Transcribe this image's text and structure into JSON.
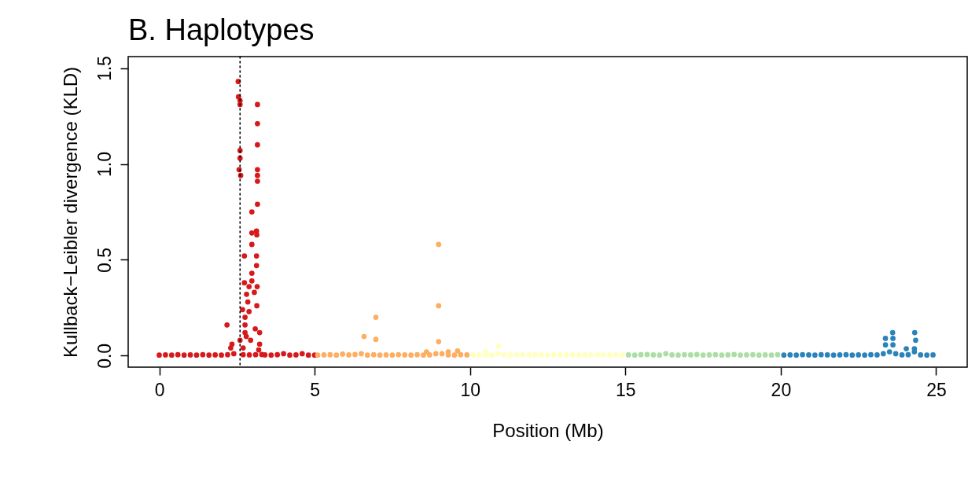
{
  "chart_data": {
    "type": "scatter",
    "title": "B. Haplotypes",
    "xlabel": "Position (Mb)",
    "ylabel": "Kullback−Leibler divergence (KLD)",
    "marker": "circle",
    "xlim": [
      -1,
      26
    ],
    "xticks": [
      0,
      5,
      10,
      15,
      20,
      25
    ],
    "ylim": [
      -0.06,
      1.56
    ],
    "yticks": [
      {
        "value": 0,
        "label": "0.0"
      },
      {
        "value": 0.5,
        "label": "0.5"
      },
      {
        "value": 1,
        "label": "1.0"
      },
      {
        "value": 1.5,
        "label": "1.5"
      }
    ],
    "ref_lines": [
      {
        "axis": "x",
        "value": 2.6,
        "line_style": "dotted",
        "color": "#000000"
      }
    ],
    "series": [
      {
        "color": "#d7191c",
        "x": [
          0,
          0.2,
          0.4,
          0.6,
          0.8,
          1,
          1.2,
          1.4,
          1.6,
          1.8,
          2,
          2.2,
          2.4,
          2.7,
          2.9,
          3.1,
          3.3,
          3.4,
          3.6,
          3.8,
          4,
          4.2,
          4.4,
          4.6,
          4.8,
          5,
          2.54,
          2.55,
          2.6,
          2.6,
          3.16,
          3.16,
          3.16,
          2.6,
          2.6,
          2.57,
          2.62,
          3.16,
          3.16,
          3.16,
          3.16,
          2.98,
          2.98,
          3.13,
          3.14,
          2.98,
          2.74,
          3.13,
          3.13,
          2.98,
          2.74,
          2.98,
          3.15,
          2.89,
          2.81,
          3.06,
          2.85,
          3.14,
          2.68,
          2.89,
          2.76,
          2.76,
          2.18,
          2.76,
          3.09,
          3.23,
          2.34,
          2.6,
          2.94,
          3.23,
          2.7,
          2.8,
          3.2,
          2.3
        ],
        "values": [
          0.003,
          0.004,
          0.003,
          0.005,
          0.003,
          0.004,
          0.003,
          0.005,
          0.003,
          0.004,
          0.003,
          0.005,
          0.01,
          0.005,
          0.004,
          0.005,
          0.006,
          0.004,
          0.003,
          0.005,
          0.01,
          0.003,
          0.004,
          0.01,
          0.003,
          0.003,
          1.43,
          1.35,
          1.33,
          1.31,
          1.31,
          1.21,
          1.1,
          1.07,
          1.03,
          0.97,
          0.94,
          0.97,
          0.94,
          0.91,
          0.79,
          0.75,
          0.64,
          0.65,
          0.63,
          0.58,
          0.52,
          0.52,
          0.47,
          0.43,
          0.38,
          0.39,
          0.36,
          0.36,
          0.32,
          0.33,
          0.28,
          0.26,
          0.24,
          0.23,
          0.2,
          0.16,
          0.16,
          0.12,
          0.14,
          0.12,
          0.06,
          0.08,
          0.08,
          0.06,
          0.04,
          0.1,
          0.03,
          0.04
        ]
      },
      {
        "color": "#fdae61",
        "x": [
          5.1,
          5.3,
          5.5,
          5.7,
          5.9,
          6.1,
          6.3,
          6.5,
          6.7,
          6.9,
          7.1,
          7.3,
          7.5,
          7.7,
          7.9,
          8.1,
          8.3,
          8.5,
          8.7,
          8.9,
          9.1,
          9.3,
          9.5,
          9.7,
          9.9,
          8.99,
          8.99,
          6.97,
          6.59,
          6.97,
          8.99,
          9.3,
          9.6,
          8.6
        ],
        "values": [
          0.003,
          0.004,
          0.005,
          0.003,
          0.008,
          0.004,
          0.006,
          0.01,
          0.003,
          0.005,
          0.003,
          0.004,
          0.003,
          0.005,
          0.004,
          0.003,
          0.005,
          0.003,
          0.004,
          0.01,
          0.01,
          0.004,
          0.003,
          0.005,
          0.004,
          0.58,
          0.26,
          0.2,
          0.1,
          0.085,
          0.073,
          0.02,
          0.025,
          0.02
        ]
      },
      {
        "color": "#ffffbf",
        "x": [
          10.1,
          10.3,
          10.5,
          10.7,
          10.9,
          11.1,
          11.3,
          11.5,
          11.7,
          11.9,
          12.1,
          12.3,
          12.5,
          12.7,
          12.9,
          13.1,
          13.3,
          13.5,
          13.7,
          13.9,
          14.1,
          14.3,
          14.5,
          14.7,
          14.9,
          10.92,
          10.5
        ],
        "values": [
          0.004,
          0.003,
          0.005,
          0.003,
          0.01,
          0.004,
          0.003,
          0.005,
          0.004,
          0.003,
          0.005,
          0.004,
          0.003,
          0.006,
          0.004,
          0.003,
          0.005,
          0.003,
          0.004,
          0.003,
          0.005,
          0.004,
          0.003,
          0.004,
          0.003,
          0.05,
          0.02
        ]
      },
      {
        "color": "#abdda4",
        "x": [
          15.1,
          15.3,
          15.5,
          15.7,
          15.9,
          16.1,
          16.3,
          16.5,
          16.7,
          16.9,
          17.1,
          17.3,
          17.5,
          17.7,
          17.9,
          18.1,
          18.3,
          18.5,
          18.7,
          18.9,
          19.1,
          19.3,
          19.5,
          19.7,
          19.9
        ],
        "values": [
          0.004,
          0.003,
          0.005,
          0.006,
          0.004,
          0.003,
          0.01,
          0.004,
          0.003,
          0.005,
          0.004,
          0.006,
          0.003,
          0.004,
          0.005,
          0.003,
          0.004,
          0.006,
          0.003,
          0.004,
          0.005,
          0.003,
          0.004,
          0.003,
          0.005
        ]
      },
      {
        "color": "#2b83ba",
        "x": [
          20.1,
          20.3,
          20.5,
          20.7,
          20.9,
          21.1,
          21.3,
          21.5,
          21.7,
          21.9,
          22.1,
          22.3,
          22.5,
          22.7,
          22.9,
          23.1,
          23.3,
          23.5,
          23.7,
          23.9,
          24.1,
          24.3,
          24.5,
          24.7,
          24.9,
          23.6,
          24.31,
          23.37,
          23.61,
          24.34,
          23.37,
          23.61,
          24.04,
          24.3
        ],
        "values": [
          0.003,
          0.004,
          0.003,
          0.005,
          0.004,
          0.003,
          0.005,
          0.004,
          0.003,
          0.004,
          0.005,
          0.003,
          0.004,
          0.003,
          0.005,
          0.004,
          0.01,
          0.02,
          0.01,
          0.004,
          0.005,
          0.02,
          0.004,
          0.003,
          0.004,
          0.12,
          0.12,
          0.09,
          0.09,
          0.08,
          0.056,
          0.056,
          0.036,
          0.036
        ]
      }
    ]
  }
}
